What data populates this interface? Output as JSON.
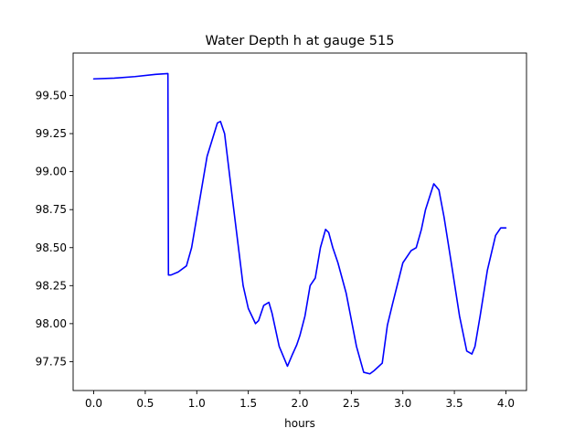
{
  "chart_data": {
    "type": "line",
    "title": "Water Depth h at gauge 515",
    "xlabel": "hours",
    "ylabel": "",
    "xlim": [
      -0.2,
      4.2
    ],
    "ylim": [
      97.56,
      99.78
    ],
    "xticks": [
      0.0,
      0.5,
      1.0,
      1.5,
      2.0,
      2.5,
      3.0,
      3.5,
      4.0
    ],
    "xtick_labels": [
      "0.0",
      "0.5",
      "1.0",
      "1.5",
      "2.0",
      "2.5",
      "3.0",
      "3.5",
      "4.0"
    ],
    "yticks": [
      97.75,
      98.0,
      98.25,
      98.5,
      98.75,
      99.0,
      99.25,
      99.5
    ],
    "ytick_labels": [
      "97.75",
      "98.00",
      "98.25",
      "98.50",
      "98.75",
      "99.00",
      "99.25",
      "99.50"
    ],
    "grid": false,
    "series": [
      {
        "color": "#0000ff",
        "x": [
          0.0,
          0.2,
          0.4,
          0.6,
          0.72,
          0.725,
          0.75,
          0.82,
          0.9,
          0.95,
          1.0,
          1.1,
          1.2,
          1.23,
          1.27,
          1.35,
          1.45,
          1.5,
          1.57,
          1.6,
          1.65,
          1.7,
          1.73,
          1.8,
          1.88,
          1.93,
          1.97,
          2.0,
          2.05,
          2.1,
          2.15,
          2.2,
          2.25,
          2.28,
          2.32,
          2.37,
          2.45,
          2.55,
          2.62,
          2.68,
          2.72,
          2.8,
          2.85,
          2.9,
          3.0,
          3.08,
          3.13,
          3.18,
          3.22,
          3.3,
          3.35,
          3.4,
          3.47,
          3.55,
          3.62,
          3.67,
          3.7,
          3.75,
          3.82,
          3.9,
          3.95,
          4.0
        ],
        "y": [
          99.61,
          99.615,
          99.625,
          99.64,
          99.645,
          98.32,
          98.32,
          98.34,
          98.38,
          98.5,
          98.7,
          99.1,
          99.32,
          99.33,
          99.25,
          98.8,
          98.25,
          98.1,
          98.0,
          98.02,
          98.12,
          98.14,
          98.07,
          97.85,
          97.72,
          97.8,
          97.86,
          97.92,
          98.05,
          98.25,
          98.3,
          98.5,
          98.62,
          98.6,
          98.5,
          98.4,
          98.2,
          97.85,
          97.68,
          97.67,
          97.69,
          97.74,
          97.99,
          98.13,
          98.4,
          98.48,
          98.5,
          98.62,
          98.75,
          98.92,
          98.88,
          98.7,
          98.4,
          98.05,
          97.82,
          97.8,
          97.85,
          98.05,
          98.35,
          98.58,
          98.63,
          98.63
        ]
      }
    ]
  }
}
